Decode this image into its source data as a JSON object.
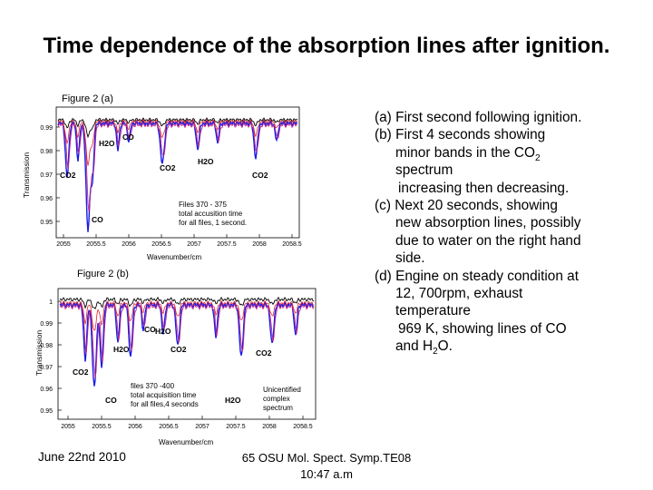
{
  "slide": {
    "title": "Time dependence of the absorption lines after ignition."
  },
  "figure_a": {
    "heading": "Figure 2 (a)",
    "ylabel": "Transmission",
    "xlabel": "Wavenumber/cm",
    "yticks": [
      "0.99",
      "0.98",
      "0.97",
      "0.96",
      "0.95"
    ],
    "xticks": [
      "2055",
      "2055.5",
      "2056",
      "2056.5",
      "2057",
      "2057.5",
      "2058",
      "2058.5"
    ],
    "note_lines": [
      "Files 370 - 375",
      "total accusition time",
      "for all files, 1 second."
    ],
    "labels": {
      "h2o_1": "H2O",
      "co_1": "CO",
      "co2_1": "CO2",
      "co_2": "CO",
      "co2_2": "CO2",
      "h2o_2": "H2O",
      "co2_3": "CO2"
    }
  },
  "figure_b": {
    "heading": "Figure 2 (b)",
    "ylabel": "Transmission",
    "xlabel": "Wavenumber/cm",
    "yticks": [
      "1",
      "0.99",
      "0.98",
      "0.97",
      "0.96",
      "0.95"
    ],
    "xticks": [
      "2055",
      "2055.5",
      "2056",
      "2056.5",
      "2057",
      "2057.5",
      "2058",
      "2058.5"
    ],
    "note_lines": [
      "files 370 -400",
      "total acquisition time",
      "for all files,4 seconds"
    ],
    "note2_lines": [
      "Unicentified",
      "complex",
      "spectrum"
    ],
    "labels": {
      "co_1": "CO",
      "h2o_1": "H2O",
      "h2o_2": "H2O",
      "co2_1": "CO2",
      "co2_2": "CO2",
      "co_2": "CO",
      "h2o_3": "H2O",
      "co2_3": "CO2"
    }
  },
  "bullets": {
    "a": "(a) First second following ignition.",
    "b1": "(b) First 4 seconds showing",
    "b2": "minor bands in the CO",
    "b2_sub": "2",
    "b3": "spectrum",
    "b4": "increasing then decreasing.",
    "c1": "(c) Next 20 seconds, showing",
    "c2": "new absorption lines, possibly",
    "c3": "due to water on the right hand",
    "c4": "side.",
    "d1": "(d) Engine on  steady condition at",
    "d2": "12, 700rpm, exhaust",
    "d3": "temperature",
    "d4": "969 K, showing lines of CO",
    "d5_pre": "and H",
    "d5_sub": "2",
    "d5_post": "O."
  },
  "footer": {
    "date": "June 22nd 2010",
    "venue_line1": "65 OSU Mol. Spect. Symp.TE08",
    "venue_line2": "10:47 a.m"
  },
  "colors": {
    "trace_black": "#000000",
    "trace_blue": "#1a1ae6",
    "trace_red": "#e0222e",
    "trace_magenta": "#c02a8a"
  }
}
